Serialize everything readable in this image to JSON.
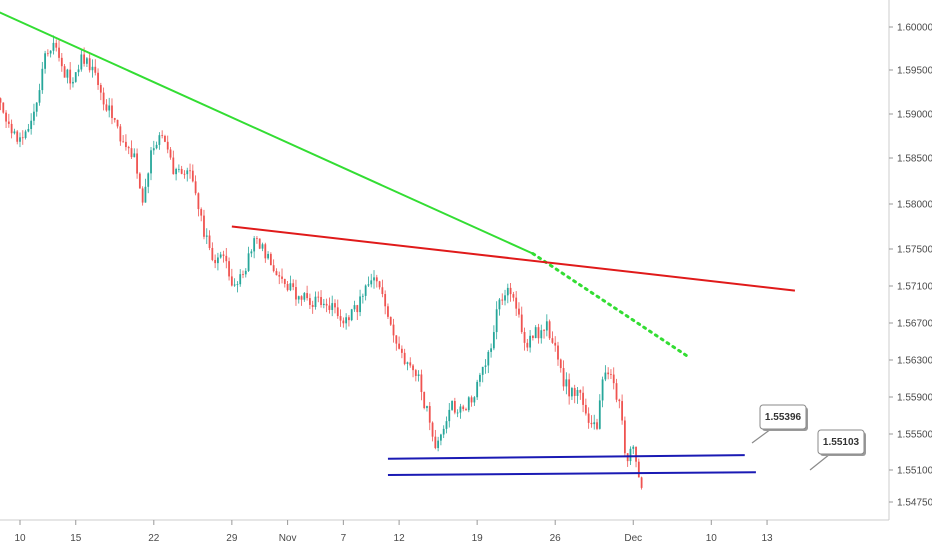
{
  "chart_data": {
    "type": "candlestick",
    "title": "",
    "xlabel": "",
    "ylabel": "",
    "ylim": [
      1.5455,
      1.6035
    ],
    "y_ticks": [
      "1.60000",
      "1.59500",
      "1.59000",
      "1.58500",
      "1.58000",
      "1.57500",
      "1.57100",
      "1.56700",
      "1.56300",
      "1.55900",
      "1.55500",
      "1.55100",
      "1.54750"
    ],
    "x_ticks": [
      "10",
      "15",
      "22",
      "29",
      "Nov",
      "7",
      "12",
      "19",
      "26",
      "Dec",
      "10",
      "13"
    ],
    "x_range_days": [
      -2.0,
      62.0
    ],
    "up_color": "#26a69a",
    "down_color": "#ef5350",
    "anchors": [
      {
        "day": -2.0,
        "price": 1.5915
      },
      {
        "day": -0.5,
        "price": 1.5885
      },
      {
        "day": 0.3,
        "price": 1.587
      },
      {
        "day": 1.5,
        "price": 1.5905
      },
      {
        "day": 2.5,
        "price": 1.5965
      },
      {
        "day": 3.2,
        "price": 1.5985
      },
      {
        "day": 4.0,
        "price": 1.5955
      },
      {
        "day": 5.0,
        "price": 1.593
      },
      {
        "day": 5.8,
        "price": 1.5965
      },
      {
        "day": 6.8,
        "price": 1.595
      },
      {
        "day": 8.0,
        "price": 1.591
      },
      {
        "day": 9.5,
        "price": 1.587
      },
      {
        "day": 10.5,
        "price": 1.585
      },
      {
        "day": 11.2,
        "price": 1.58
      },
      {
        "day": 12.0,
        "price": 1.5855
      },
      {
        "day": 13.0,
        "price": 1.588
      },
      {
        "day": 14.0,
        "price": 1.584
      },
      {
        "day": 15.5,
        "price": 1.583
      },
      {
        "day": 16.5,
        "price": 1.578
      },
      {
        "day": 17.5,
        "price": 1.574
      },
      {
        "day": 18.5,
        "price": 1.574
      },
      {
        "day": 19.5,
        "price": 1.571
      },
      {
        "day": 20.5,
        "price": 1.573
      },
      {
        "day": 21.2,
        "price": 1.5765
      },
      {
        "day": 22.5,
        "price": 1.574
      },
      {
        "day": 23.5,
        "price": 1.572
      },
      {
        "day": 24.5,
        "price": 1.5705
      },
      {
        "day": 25.5,
        "price": 1.57
      },
      {
        "day": 26.5,
        "price": 1.569
      },
      {
        "day": 27.5,
        "price": 1.5695
      },
      {
        "day": 28.5,
        "price": 1.568
      },
      {
        "day": 29.5,
        "price": 1.567
      },
      {
        "day": 30.3,
        "price": 1.5685
      },
      {
        "day": 31.5,
        "price": 1.571
      },
      {
        "day": 32.0,
        "price": 1.5725
      },
      {
        "day": 33.0,
        "price": 1.569
      },
      {
        "day": 34.0,
        "price": 1.565
      },
      {
        "day": 35.0,
        "price": 1.562
      },
      {
        "day": 36.0,
        "price": 1.561
      },
      {
        "day": 36.8,
        "price": 1.557
      },
      {
        "day": 37.5,
        "price": 1.554
      },
      {
        "day": 38.0,
        "price": 1.555
      },
      {
        "day": 39.0,
        "price": 1.558
      },
      {
        "day": 40.0,
        "price": 1.5575
      },
      {
        "day": 41.0,
        "price": 1.559
      },
      {
        "day": 42.5,
        "price": 1.565
      },
      {
        "day": 43.3,
        "price": 1.5695
      },
      {
        "day": 44.0,
        "price": 1.571
      },
      {
        "day": 44.8,
        "price": 1.569
      },
      {
        "day": 45.5,
        "price": 1.5645
      },
      {
        "day": 46.5,
        "price": 1.566
      },
      {
        "day": 47.5,
        "price": 1.5665
      },
      {
        "day": 48.3,
        "price": 1.564
      },
      {
        "day": 48.8,
        "price": 1.5615
      },
      {
        "day": 49.5,
        "price": 1.5595
      },
      {
        "day": 50.5,
        "price": 1.559
      },
      {
        "day": 51.5,
        "price": 1.556
      },
      {
        "day": 52.0,
        "price": 1.556
      },
      {
        "day": 52.6,
        "price": 1.561
      },
      {
        "day": 53.5,
        "price": 1.561
      },
      {
        "day": 54.0,
        "price": 1.558
      },
      {
        "day": 54.6,
        "price": 1.5525
      },
      {
        "day": 55.3,
        "price": 1.553
      },
      {
        "day": 55.8,
        "price": 1.549
      }
    ],
    "trendlines": [
      {
        "name": "green-trendline",
        "color": "#33dd33",
        "style": "solid",
        "points": [
          [
            -2.0,
            1.6018
          ],
          [
            46.0,
            1.5745
          ]
        ]
      },
      {
        "name": "green-projection",
        "color": "#33dd33",
        "style": "dotted",
        "points": [
          [
            46.0,
            1.5745
          ],
          [
            60.0,
            1.5633
          ]
        ]
      },
      {
        "name": "red-trendline",
        "color": "#e01a1a",
        "style": "solid",
        "points": [
          [
            19.0,
            1.5775
          ],
          [
            69.5,
            1.5705
          ]
        ]
      },
      {
        "name": "blue-support-upper",
        "color": "#1a1ab4",
        "style": "solid",
        "points": [
          [
            33.0,
            1.55225
          ],
          [
            65.0,
            1.55265
          ]
        ]
      },
      {
        "name": "blue-support-lower",
        "color": "#1a1ab4",
        "style": "solid",
        "points": [
          [
            33.0,
            1.55045
          ],
          [
            66.0,
            1.55075
          ]
        ]
      }
    ],
    "annotations": [
      {
        "text": "1.55396",
        "price": 1.55396
      },
      {
        "text": "1.55103",
        "price": 1.55103
      }
    ]
  }
}
